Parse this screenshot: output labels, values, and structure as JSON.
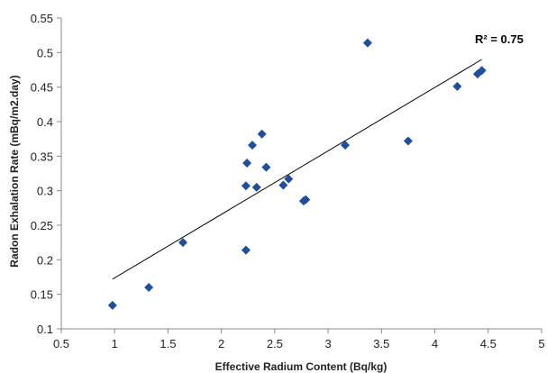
{
  "chart_data": {
    "type": "scatter",
    "xlabel": "Effective Radium Content (Bq/kg)",
    "ylabel": "Radon Exhalation Rate  (mBq/m2.day)",
    "xlim": [
      0.5,
      5
    ],
    "ylim": [
      0.1,
      0.55
    ],
    "xticks": [
      "0.5",
      "1",
      "1.5",
      "2",
      "2.5",
      "3",
      "3.5",
      "4",
      "4.5",
      "5"
    ],
    "yticks": [
      "0.1",
      "0.15",
      "0.2",
      "0.25",
      "0.3",
      "0.35",
      "0.4",
      "0.45",
      "0.5",
      "0.55"
    ],
    "grid": false,
    "legend": "none",
    "marker": "diamond",
    "marker_color": "#1f4e9c",
    "trendline_color": "#000000",
    "points": [
      {
        "x": 0.98,
        "y": 0.134
      },
      {
        "x": 1.32,
        "y": 0.16
      },
      {
        "x": 1.64,
        "y": 0.225
      },
      {
        "x": 2.23,
        "y": 0.214
      },
      {
        "x": 2.23,
        "y": 0.307
      },
      {
        "x": 2.24,
        "y": 0.34
      },
      {
        "x": 2.29,
        "y": 0.366
      },
      {
        "x": 2.33,
        "y": 0.305
      },
      {
        "x": 2.38,
        "y": 0.382
      },
      {
        "x": 2.42,
        "y": 0.334
      },
      {
        "x": 2.58,
        "y": 0.308
      },
      {
        "x": 2.63,
        "y": 0.317
      },
      {
        "x": 2.77,
        "y": 0.285
      },
      {
        "x": 2.79,
        "y": 0.287
      },
      {
        "x": 3.16,
        "y": 0.366
      },
      {
        "x": 3.37,
        "y": 0.514
      },
      {
        "x": 3.75,
        "y": 0.372
      },
      {
        "x": 4.21,
        "y": 0.451
      },
      {
        "x": 4.4,
        "y": 0.469
      },
      {
        "x": 4.44,
        "y": 0.474
      }
    ],
    "trendline": {
      "x": [
        0.98,
        4.44
      ],
      "y": [
        0.172,
        0.49
      ]
    },
    "annotation": "R² = 0.75"
  }
}
